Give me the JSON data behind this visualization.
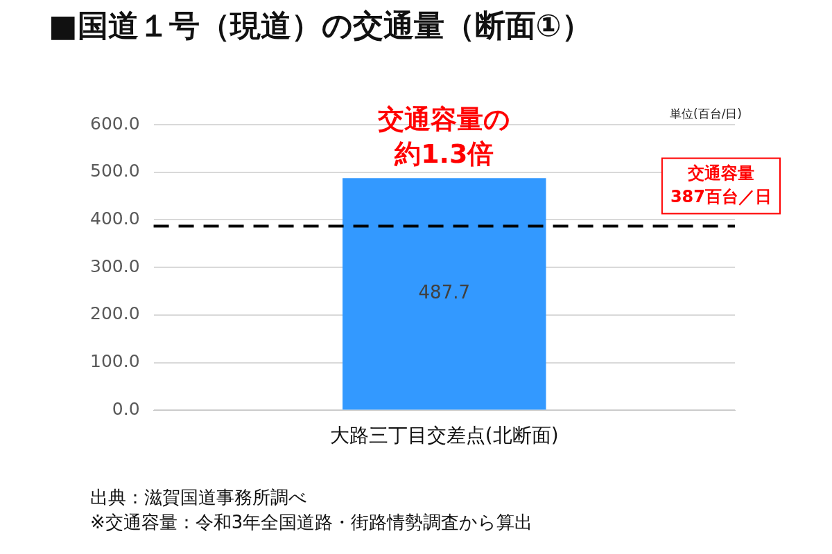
{
  "chart_data": {
    "type": "bar",
    "title": "■国道１号（現道）の交通量（断面①）",
    "categories": [
      "大路三丁目交差点(北断面)"
    ],
    "values": [
      487.7
    ],
    "color": "#3399ff",
    "ylim": [
      0,
      600
    ],
    "yticks": [
      {
        "value": 0,
        "label": "0.0"
      },
      {
        "value": 100,
        "label": "100.0"
      },
      {
        "value": 200,
        "label": "200.0"
      },
      {
        "value": 300,
        "label": "300.0"
      },
      {
        "value": 400,
        "label": "400.0"
      },
      {
        "value": 500,
        "label": "500.0"
      },
      {
        "value": 600,
        "label": "600.0"
      }
    ],
    "grid": "y",
    "legend": false,
    "data_labels": true,
    "ref_lines": [
      {
        "axis": "y",
        "value": 387,
        "label": "交通容量387百台／日",
        "color": "#000000",
        "line_style": "dashed"
      }
    ],
    "annotations": [
      {
        "text": "交通容量の約1.3倍",
        "x": "大路三丁目交差点(北断面)",
        "y": 487.7
      },
      "単位(百台/日)",
      "出典：滋賀国道事務所調べ",
      "※交通容量：令和3年全国道路・街路情勢調査から算出"
    ]
  }
}
